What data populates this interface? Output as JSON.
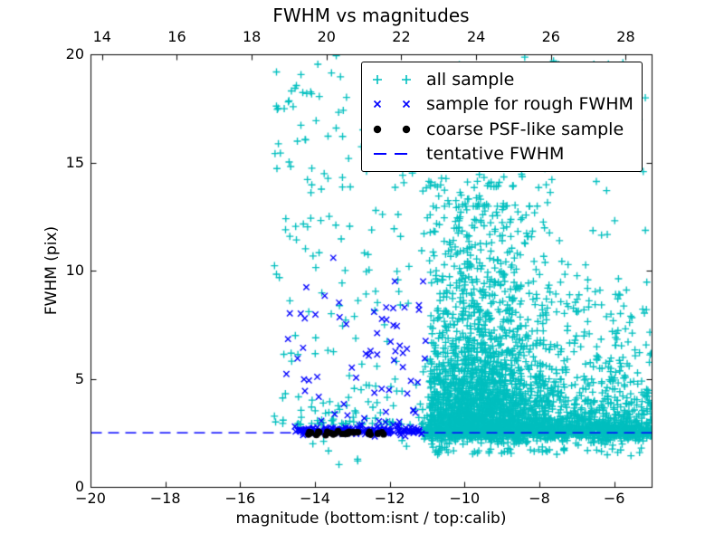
{
  "chart_data": {
    "type": "scatter",
    "title": "FWHM vs magnitudes",
    "xlabel": "magnitude (bottom:isnt / top:calib)",
    "ylabel": "FWHM (pix)",
    "xlim_bottom": [
      -20,
      -5
    ],
    "xlim_top": [
      13.69,
      28.69
    ],
    "ylim": [
      0,
      20
    ],
    "grid": false,
    "legend_position": "upper right",
    "x_ticks_bottom_labels": [
      "−20",
      "−18",
      "−16",
      "−14",
      "−12",
      "−10",
      "−8",
      "−6"
    ],
    "x_ticks_bottom_values": [
      -20,
      -18,
      -16,
      -14,
      -12,
      -10,
      -8,
      -6
    ],
    "x_ticks_top_labels": [
      "14",
      "16",
      "18",
      "20",
      "22",
      "24",
      "26",
      "28"
    ],
    "x_ticks_top_values": [
      14,
      16,
      18,
      20,
      22,
      24,
      26,
      28
    ],
    "y_ticks_labels": [
      "0",
      "5",
      "10",
      "15",
      "20"
    ],
    "y_ticks_values": [
      0,
      5,
      10,
      15,
      20
    ],
    "tentative_fwhm": 2.52,
    "seed": 12345,
    "axis_color": "#000000",
    "series": [
      {
        "name": "all sample",
        "marker": "plus",
        "color": "#00bfbf",
        "zorder": 1,
        "clusters": [
          {
            "n": 210,
            "x": {
              "dist": "uniform",
              "min": -15.1,
              "max": -10.9
            },
            "y": {
              "dist": "power",
              "min": 2.9,
              "max": 20,
              "k": 2.2
            }
          },
          {
            "n": 30,
            "x": {
              "dist": "uniform",
              "min": -15.05,
              "max": -13.2
            },
            "y": {
              "dist": "uniform",
              "min": 12,
              "max": 19.8
            }
          },
          {
            "n": 1700,
            "x": {
              "dist": "normal",
              "mean": -9.7,
              "sd": 0.95,
              "min": -10.95,
              "max": -5.05
            },
            "y": {
              "dist": "exp",
              "base": 2.4,
              "scale": 2.2,
              "max": 13
            }
          },
          {
            "n": 1000,
            "x": {
              "dist": "uniform",
              "min": -10.95,
              "max": -5.02
            },
            "y": {
              "dist": "exp",
              "base": 2.35,
              "scale": 0.9,
              "max": 7
            }
          },
          {
            "n": 700,
            "x": {
              "dist": "uniform",
              "min": -11.15,
              "max": -5.02
            },
            "y": {
              "dist": "normal",
              "mean": 2.6,
              "sd": 0.22
            }
          },
          {
            "n": 170,
            "x": {
              "dist": "normal",
              "mean": -9.8,
              "sd": 1.0,
              "min": -10.95,
              "max": -5.05
            },
            "y": {
              "dist": "uniform",
              "min": 8,
              "max": 14.5
            }
          },
          {
            "n": 130,
            "x": {
              "dist": "uniform",
              "min": -10.95,
              "max": -5.05
            },
            "y": {
              "dist": "uniform",
              "min": 8,
              "max": 19.9
            }
          },
          {
            "n": 140,
            "x": {
              "dist": "uniform",
              "min": -8.2,
              "max": -5.05
            },
            "y": {
              "dist": "uniform",
              "min": 2.8,
              "max": 9
            }
          },
          {
            "n": 100,
            "x": {
              "dist": "uniform",
              "min": -10.9,
              "max": -5.02
            },
            "y": {
              "dist": "uniform",
              "min": 1.45,
              "max": 2.35
            }
          },
          {
            "n": 8,
            "x": {
              "dist": "uniform",
              "min": -14.6,
              "max": -11.2
            },
            "y": {
              "dist": "uniform",
              "min": 1.0,
              "max": 2.2
            }
          }
        ]
      },
      {
        "name": "sample for rough FWHM",
        "marker": "x",
        "color": "#0000ff",
        "zorder": 2,
        "clusters": [
          {
            "n": 175,
            "x": {
              "dist": "uniform",
              "min": -14.55,
              "max": -11.15
            },
            "y": {
              "dist": "normal",
              "mean": 2.62,
              "sd": 0.09
            }
          },
          {
            "n": 40,
            "x": {
              "dist": "uniform",
              "min": -14.8,
              "max": -11.05
            },
            "y": {
              "dist": "power",
              "min": 3,
              "max": 11,
              "k": 1.8
            }
          },
          {
            "n": 25,
            "x": {
              "dist": "uniform",
              "min": -12.7,
              "max": -11.1
            },
            "y": {
              "dist": "uniform",
              "min": 3,
              "max": 10.5
            }
          }
        ]
      },
      {
        "name": "coarse PSF-like sample",
        "marker": "dot",
        "color": "#000000",
        "zorder": 4,
        "clusters": [
          {
            "n": 9,
            "x": {
              "dist": "normal",
              "mean": -14.05,
              "sd": 0.13
            },
            "y": {
              "dist": "normal",
              "mean": 2.5,
              "sd": 0.055
            }
          },
          {
            "n": 9,
            "x": {
              "dist": "normal",
              "mean": -13.6,
              "sd": 0.14
            },
            "y": {
              "dist": "normal",
              "mean": 2.5,
              "sd": 0.055
            }
          },
          {
            "n": 9,
            "x": {
              "dist": "normal",
              "mean": -13.05,
              "sd": 0.15
            },
            "y": {
              "dist": "normal",
              "mean": 2.5,
              "sd": 0.055
            }
          },
          {
            "n": 9,
            "x": {
              "dist": "normal",
              "mean": -12.55,
              "sd": 0.18
            },
            "y": {
              "dist": "normal",
              "mean": 2.5,
              "sd": 0.055
            }
          }
        ]
      },
      {
        "name": "tentative FWHM",
        "marker": "dashed-line",
        "type": "hline",
        "color": "#0000ff",
        "y": 2.52,
        "zorder": 3,
        "dash": [
          12,
          7
        ]
      }
    ]
  }
}
